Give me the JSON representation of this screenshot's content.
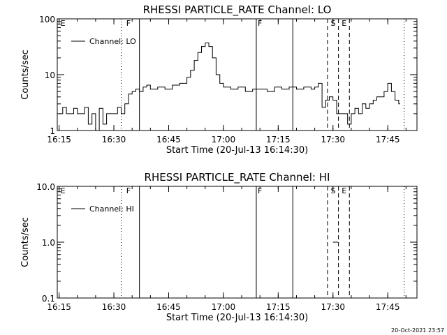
{
  "footer": {
    "timestamp": "20-Oct-2021 23:57"
  },
  "chart_data": [
    {
      "type": "line",
      "title": "RHESSI PARTICLE_RATE Channel: LO",
      "xlabel": "Start Time (20-Jul-13 16:14:30)",
      "ylabel": "Counts/sec",
      "xlim": [
        "16:14:30",
        "17:53:00"
      ],
      "ylim": [
        1,
        100
      ],
      "yscale": "log",
      "x_ticks": [
        "16:15",
        "16:30",
        "16:45",
        "17:00",
        "17:15",
        "17:30",
        "17:45"
      ],
      "y_ticks": [
        {
          "value": 1,
          "label": "1"
        },
        {
          "value": 10,
          "label": "10"
        },
        {
          "value": 100,
          "label": "100"
        }
      ],
      "legend": {
        "position": "top-left",
        "entries": [
          "Channel: LO"
        ]
      },
      "flags": [
        {
          "label": "E",
          "time": "16:15:00",
          "style": "none"
        },
        {
          "label": "F",
          "time": "16:33:00",
          "style": "solid"
        },
        {
          "label": "F",
          "time": "17:09:00",
          "style": "solid"
        },
        {
          "label": "S",
          "time": "17:29:00",
          "style": "dashed"
        },
        {
          "label": "E",
          "time": "17:32:00",
          "style": "dashed"
        }
      ],
      "markers": [
        {
          "time": "16:32:00",
          "style": "dotted"
        },
        {
          "time": "16:37:00",
          "style": "solid"
        },
        {
          "time": "17:09:00",
          "style": "solid"
        },
        {
          "time": "17:19:00",
          "style": "solid"
        },
        {
          "time": "17:28:30",
          "style": "dashed"
        },
        {
          "time": "17:31:30",
          "style": "dashed"
        },
        {
          "time": "17:34:30",
          "style": "dashed"
        },
        {
          "time": "17:49:30",
          "style": "dotted"
        }
      ],
      "series": [
        {
          "name": "Channel: LO",
          "x": [
            "16:15",
            "16:16",
            "16:17",
            "16:18",
            "16:19",
            "16:20",
            "16:21",
            "16:22",
            "16:23",
            "16:24",
            "16:25",
            "16:26",
            "16:27",
            "16:28",
            "16:29",
            "16:30",
            "16:31",
            "16:32",
            "16:33",
            "16:34",
            "16:35",
            "16:36",
            "16:37",
            "16:38",
            "16:39",
            "16:40",
            "16:42",
            "16:44",
            "16:46",
            "16:48",
            "16:50",
            "16:51",
            "16:52",
            "16:53",
            "16:54",
            "16:55",
            "16:56",
            "16:57",
            "16:58",
            "16:59",
            "17:00",
            "17:02",
            "17:04",
            "17:06",
            "17:08",
            "17:10",
            "17:12",
            "17:14",
            "17:16",
            "17:18",
            "17:20",
            "17:22",
            "17:24",
            "17:25",
            "17:26",
            "17:27",
            "17:28",
            "17:29",
            "17:30",
            "17:31",
            "17:32",
            "17:33",
            "17:34",
            "17:35",
            "17:36",
            "17:37",
            "17:38",
            "17:39",
            "17:40",
            "17:41",
            "17:42",
            "17:43",
            "17:44",
            "17:45",
            "17:46",
            "17:47",
            "17:48"
          ],
          "y": [
            2,
            2.6,
            2,
            2,
            2.5,
            2,
            2,
            2.6,
            1.3,
            2,
            1,
            2.5,
            1.3,
            2,
            2,
            2,
            2.6,
            2,
            3,
            4.5,
            5,
            5.5,
            5,
            6,
            6.5,
            5.5,
            6,
            5.5,
            6.5,
            7,
            9,
            12,
            18,
            25,
            32,
            37,
            32,
            20,
            10,
            7,
            6,
            5.5,
            6,
            5,
            5.5,
            5.5,
            5,
            6,
            5.5,
            6,
            5.5,
            6,
            5.5,
            6,
            7,
            2.6,
            3.5,
            4,
            3.5,
            2,
            2,
            2,
            1.3,
            2,
            2.5,
            2,
            3,
            2.5,
            3,
            3.5,
            4,
            4,
            5,
            7,
            5,
            3.5,
            3
          ]
        }
      ]
    },
    {
      "type": "line",
      "title": "RHESSI PARTICLE_RATE Channel: HI",
      "xlabel": "Start Time (20-Jul-13 16:14:30)",
      "ylabel": "Counts/sec",
      "xlim": [
        "16:14:30",
        "17:53:00"
      ],
      "ylim": [
        0.1,
        10
      ],
      "yscale": "log",
      "x_ticks": [
        "16:15",
        "16:30",
        "16:45",
        "17:00",
        "17:15",
        "17:30",
        "17:45"
      ],
      "y_ticks": [
        {
          "value": 0.1,
          "label": "0.1"
        },
        {
          "value": 1,
          "label": "1.0"
        },
        {
          "value": 10,
          "label": "10.0"
        }
      ],
      "legend": {
        "position": "top-left",
        "entries": [
          "Channel: HI"
        ]
      },
      "flags": [
        {
          "label": "E",
          "time": "16:15:00",
          "style": "none"
        },
        {
          "label": "F",
          "time": "16:33:00",
          "style": "solid"
        },
        {
          "label": "F",
          "time": "17:09:00",
          "style": "solid"
        },
        {
          "label": "S",
          "time": "17:29:00",
          "style": "dashed"
        },
        {
          "label": "E",
          "time": "17:32:00",
          "style": "dashed"
        }
      ],
      "markers": [
        {
          "time": "16:32:00",
          "style": "dotted"
        },
        {
          "time": "16:37:00",
          "style": "solid"
        },
        {
          "time": "17:09:00",
          "style": "solid"
        },
        {
          "time": "17:19:00",
          "style": "solid"
        },
        {
          "time": "17:28:30",
          "style": "dashed"
        },
        {
          "time": "17:31:30",
          "style": "dashed"
        },
        {
          "time": "17:34:30",
          "style": "dashed"
        },
        {
          "time": "17:49:30",
          "style": "dotted"
        }
      ],
      "series": [
        {
          "name": "Channel: HI",
          "x": [
            "17:30",
            "17:31"
          ],
          "y": [
            1,
            1
          ]
        }
      ]
    }
  ]
}
